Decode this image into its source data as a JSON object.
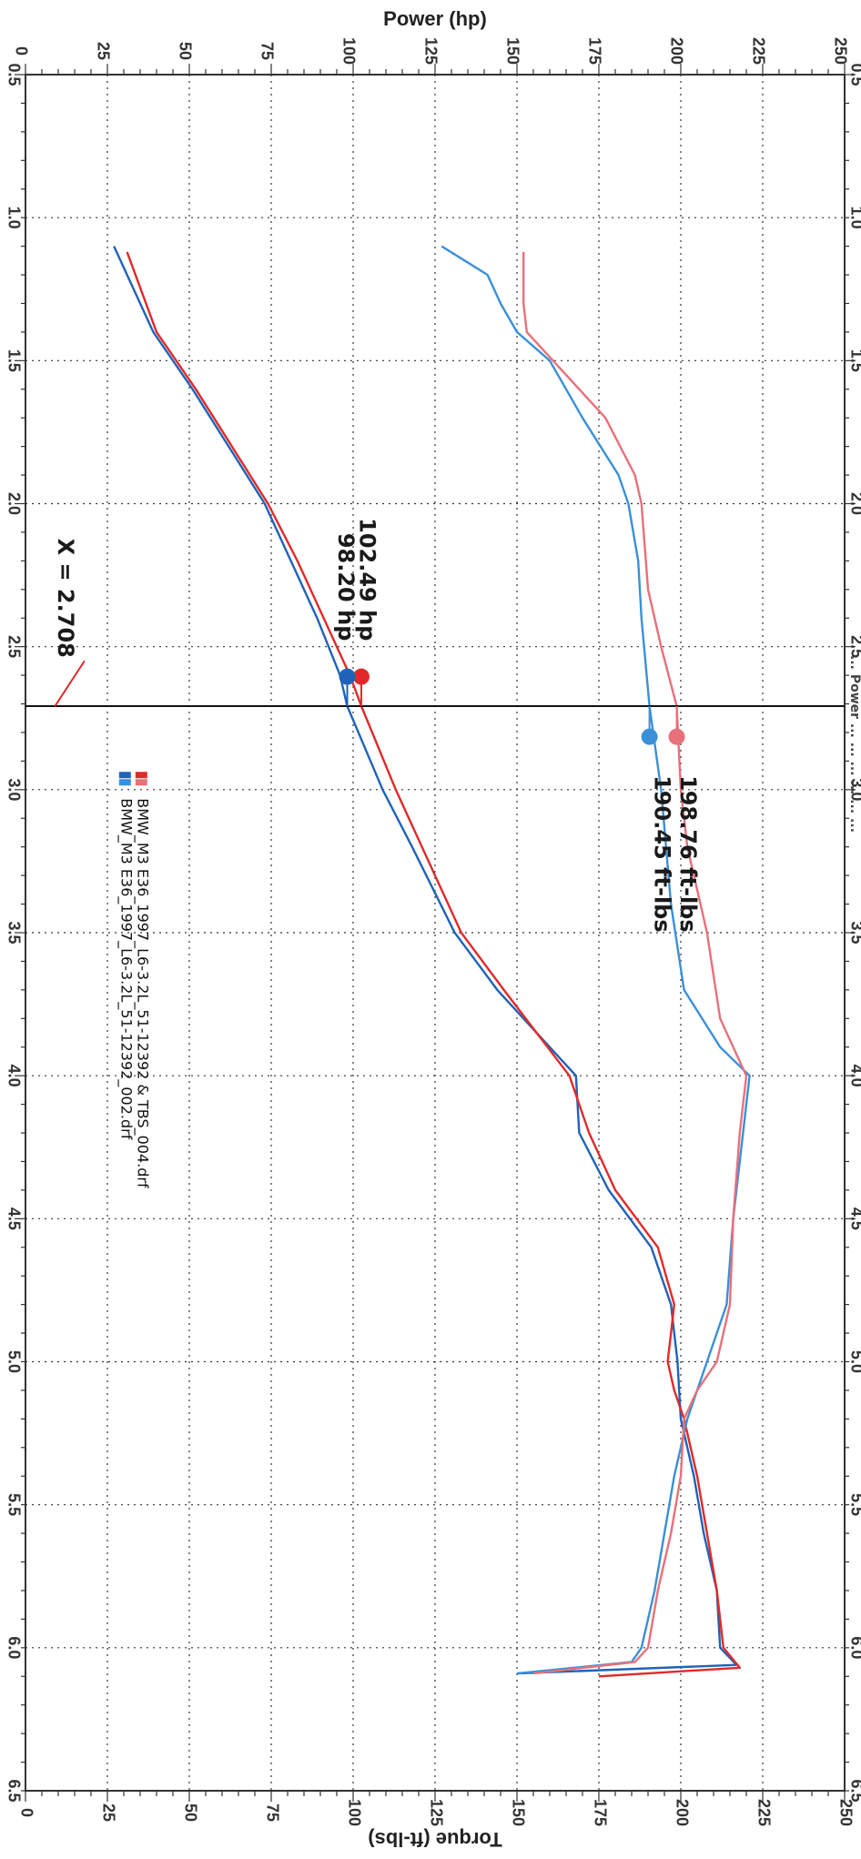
{
  "header_fragment": "... Power  ... ...  ... ...  ... ...",
  "chart_data": {
    "type": "line",
    "orientation": "rotated-90-clockwise",
    "x_axis": {
      "ticks": [
        "0.5",
        "1.0",
        "1.5",
        "2.0",
        "2.5",
        "3.0",
        "3.5",
        "4.0",
        "4.5",
        "5.0",
        "5.5",
        "6.0",
        "6.5"
      ],
      "range": [
        0.5,
        6.5
      ]
    },
    "y_axis_left": {
      "label": "Power (hp)",
      "ticks": [
        "0",
        "25",
        "50",
        "75",
        "100",
        "125",
        "150",
        "175",
        "200",
        "225",
        "250"
      ],
      "range": [
        0,
        250
      ]
    },
    "y_axis_right": {
      "label": "Torque (ft-lbs)",
      "ticks": [
        "0",
        "25",
        "50",
        "75",
        "100",
        "125",
        "150",
        "175",
        "200",
        "225",
        "250"
      ],
      "range": [
        0,
        250
      ]
    },
    "grid": true,
    "cursor": {
      "x": 2.708,
      "label": "X = 2.708"
    },
    "readouts": [
      {
        "label": "102.49 hp",
        "value": 102.49,
        "color": "#e02a2a"
      },
      {
        "label": "98.20 hp",
        "value": 98.2,
        "color": "#1f63b8"
      },
      {
        "label": "198.76 ft-lbs",
        "value": 198.76,
        "color": "#e8707a"
      },
      {
        "label": "190.45 ft-lbs",
        "value": 190.45,
        "color": "#3a90d8"
      }
    ],
    "legend": [
      {
        "name": "BMW_M3 E36_1997_L6-3.2L_51-12392_002.drf",
        "colors": [
          "#1f63b8",
          "#3a90d8"
        ]
      },
      {
        "name": "BMW_M3 E36_1997_L6-3.2L_51-12392 & TBS_004.drf",
        "colors": [
          "#e02a2a",
          "#e8707a"
        ]
      }
    ],
    "series": [
      {
        "name": "BMW_M3 E36_1997_L6-3.2L_51-12392_002.drf",
        "quantity": "power",
        "color": "#1f63b8",
        "points": [
          [
            1.1,
            27
          ],
          [
            1.4,
            39
          ],
          [
            1.6,
            51
          ],
          [
            1.8,
            62
          ],
          [
            2.0,
            73
          ],
          [
            2.2,
            81
          ],
          [
            2.4,
            89
          ],
          [
            2.6,
            96
          ],
          [
            2.708,
            98.2
          ],
          [
            3.0,
            109
          ],
          [
            3.2,
            118
          ],
          [
            3.5,
            131
          ],
          [
            3.7,
            144
          ],
          [
            4.0,
            168
          ],
          [
            4.2,
            169
          ],
          [
            4.4,
            178
          ],
          [
            4.6,
            191
          ],
          [
            4.8,
            197
          ],
          [
            5.0,
            199
          ],
          [
            5.2,
            200
          ],
          [
            5.4,
            204
          ],
          [
            5.6,
            207
          ],
          [
            5.8,
            211
          ],
          [
            6.0,
            212
          ],
          [
            6.06,
            217
          ],
          [
            6.09,
            150
          ]
        ]
      },
      {
        "name": "BMW_M3 E36_1997_L6-3.2L_51-12392 & TBS_004.drf",
        "quantity": "power",
        "color": "#e02a2a",
        "points": [
          [
            1.12,
            31
          ],
          [
            1.4,
            40
          ],
          [
            1.6,
            52
          ],
          [
            1.8,
            63
          ],
          [
            2.0,
            74
          ],
          [
            2.2,
            83
          ],
          [
            2.4,
            91
          ],
          [
            2.6,
            99
          ],
          [
            2.708,
            102.49
          ],
          [
            3.0,
            113
          ],
          [
            3.2,
            121
          ],
          [
            3.5,
            133
          ],
          [
            3.7,
            146
          ],
          [
            4.0,
            166
          ],
          [
            4.2,
            172
          ],
          [
            4.4,
            180
          ],
          [
            4.6,
            193
          ],
          [
            4.8,
            198
          ],
          [
            5.0,
            196
          ],
          [
            5.1,
            198
          ],
          [
            5.2,
            201
          ],
          [
            5.4,
            205
          ],
          [
            5.6,
            208
          ],
          [
            5.8,
            211
          ],
          [
            6.0,
            213
          ],
          [
            6.07,
            218
          ],
          [
            6.1,
            175
          ]
        ]
      },
      {
        "name": "BMW_M3 E36_1997_L6-3.2L_51-12392_002.drf",
        "quantity": "torque",
        "color": "#3a90d8",
        "points": [
          [
            1.1,
            127
          ],
          [
            1.2,
            141
          ],
          [
            1.3,
            145
          ],
          [
            1.4,
            150
          ],
          [
            1.5,
            160
          ],
          [
            1.7,
            170
          ],
          [
            1.9,
            181
          ],
          [
            2.0,
            184
          ],
          [
            2.2,
            187
          ],
          [
            2.4,
            188
          ],
          [
            2.708,
            190.45
          ],
          [
            3.0,
            194
          ],
          [
            3.4,
            197
          ],
          [
            3.7,
            201
          ],
          [
            3.9,
            212
          ],
          [
            4.0,
            221
          ],
          [
            4.2,
            219
          ],
          [
            4.5,
            216
          ],
          [
            4.8,
            214
          ],
          [
            5.0,
            208
          ],
          [
            5.2,
            202
          ],
          [
            5.4,
            198
          ],
          [
            5.6,
            195
          ],
          [
            5.8,
            192
          ],
          [
            6.0,
            188
          ],
          [
            6.05,
            185
          ],
          [
            6.09,
            150
          ]
        ]
      },
      {
        "name": "BMW_M3 E36_1997_L6-3.2L_51-12392 & TBS_004.drf",
        "quantity": "torque",
        "color": "#e8707a",
        "points": [
          [
            1.12,
            152
          ],
          [
            1.3,
            152
          ],
          [
            1.4,
            153
          ],
          [
            1.5,
            161
          ],
          [
            1.7,
            177
          ],
          [
            1.9,
            186
          ],
          [
            2.0,
            188
          ],
          [
            2.3,
            190
          ],
          [
            2.5,
            194
          ],
          [
            2.708,
            198.76
          ],
          [
            3.0,
            200
          ],
          [
            3.2,
            202
          ],
          [
            3.5,
            208
          ],
          [
            3.8,
            212
          ],
          [
            4.0,
            220
          ],
          [
            4.2,
            218
          ],
          [
            4.5,
            216
          ],
          [
            4.8,
            215
          ],
          [
            5.0,
            211
          ],
          [
            5.1,
            205
          ],
          [
            5.2,
            201
          ],
          [
            5.4,
            200
          ],
          [
            5.6,
            197
          ],
          [
            5.8,
            193
          ],
          [
            6.0,
            190
          ],
          [
            6.05,
            186
          ],
          [
            6.09,
            155
          ]
        ]
      }
    ]
  }
}
